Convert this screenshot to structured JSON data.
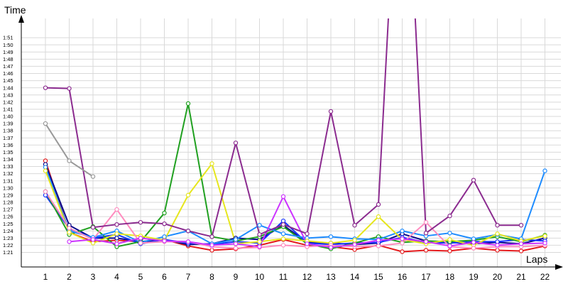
{
  "chart_data": {
    "type": "line",
    "title": "",
    "ylabel": "Time",
    "xlabel": "Laps",
    "x": [
      1,
      2,
      3,
      4,
      5,
      6,
      7,
      8,
      9,
      10,
      11,
      12,
      13,
      14,
      15,
      16,
      17,
      18,
      19,
      20,
      21,
      22
    ],
    "y_ticks": [
      "1:21",
      "1:22",
      "1:23",
      "1:24",
      "1:25",
      "1:26",
      "1:27",
      "1:28",
      "1:29",
      "1:30",
      "1:31",
      "1:32",
      "1:33",
      "1:34",
      "1:35",
      "1:36",
      "1:37",
      "1:38",
      "1:39",
      "1:40",
      "1:41",
      "1:42",
      "1:43",
      "1:44",
      "1:45",
      "1:46",
      "1:47",
      "1:48",
      "1:49",
      "1:50",
      "1:51"
    ],
    "ylim_seconds": [
      80,
      113
    ],
    "grid": true,
    "series": [
      {
        "color": "#e41a1c",
        "values": [
          93.8,
          83.8,
          82.5,
          82.7,
          82.5,
          82.8,
          81.9,
          81.3,
          81.5,
          82.0,
          82.8,
          82.0,
          81.8,
          81.4,
          82.0,
          81.1,
          81.3,
          81.2,
          81.6,
          81.3,
          81.2,
          81.9
        ]
      },
      {
        "color": "#0a0a8c",
        "values": [
          93.3,
          84.8,
          83.0,
          83.0,
          82.5,
          82.8,
          82.1,
          82.2,
          83.0,
          82.8,
          84.8,
          82.4,
          82.3,
          82.1,
          82.3,
          83.6,
          82.6,
          82.4,
          82.2,
          82.4,
          82.2,
          83.0
        ]
      },
      {
        "color": "#1533ff",
        "values": [
          89.0,
          84.3,
          83.0,
          83.5,
          82.2,
          82.8,
          82.3,
          82.1,
          82.5,
          82.3,
          85.4,
          82.3,
          82.1,
          82.3,
          82.4,
          83.1,
          82.4,
          82.3,
          82.5,
          82.5,
          82.8,
          82.6
        ]
      },
      {
        "color": "#20a020",
        "values": [
          89.5,
          83.5,
          84.6,
          81.8,
          82.5,
          86.5,
          101.8,
          83.2,
          82.6,
          83.2,
          84.6,
          82.2,
          81.5,
          82.3,
          83.2,
          82.4,
          82.6,
          82.5,
          82.7,
          83.2,
          82.5,
          83.4
        ]
      },
      {
        "color": "#1e8cff",
        "values": [
          92.9,
          84.0,
          83.1,
          84.0,
          82.4,
          83.2,
          84.0,
          82.2,
          82.8,
          84.8,
          83.6,
          83.0,
          83.2,
          82.9,
          82.8,
          84.0,
          83.3,
          83.7,
          82.9,
          83.5,
          82.9,
          92.4
        ]
      },
      {
        "color": "#e6e61e",
        "values": [
          92.4,
          83.8,
          82.3,
          83.6,
          83.3,
          82.7,
          89.0,
          93.4,
          82.2,
          82.5,
          82.9,
          82.6,
          82.3,
          82.7,
          86.0,
          82.8,
          82.2,
          82.8,
          82.0,
          83.6,
          82.6,
          83.3
        ]
      },
      {
        "color": "#ff8cbf",
        "values": [
          89.5,
          84.4,
          82.8,
          87.0,
          82.3,
          82.5,
          82.5,
          81.8,
          81.6,
          81.7,
          82.0,
          81.8,
          82.0,
          81.8,
          81.9,
          82.3,
          85.2,
          81.8,
          81.6,
          81.8,
          81.8,
          82.0
        ]
      },
      {
        "color": "#cc33ff",
        "values": [
          null,
          82.5,
          82.8,
          82.2,
          83.0,
          82.6,
          82.5,
          82.0,
          82.2,
          81.8,
          88.8,
          82.2,
          81.7,
          82.1,
          82.7,
          82.9,
          82.5,
          81.9,
          82.4,
          82.0,
          82.2,
          82.3
        ]
      },
      {
        "color": "#8b2b8f",
        "values": [
          104.0,
          103.9,
          84.5,
          84.9,
          85.2,
          85.0,
          84.0,
          83.2,
          96.3,
          83.5,
          84.9,
          83.6,
          100.7,
          84.8,
          87.7,
          150.0,
          83.7,
          86.1,
          91.1,
          84.8,
          84.8,
          null
        ]
      },
      {
        "color": "#999999",
        "values": [
          99.0,
          93.8,
          91.6,
          null,
          null,
          null,
          null,
          null,
          null,
          null,
          null,
          null,
          null,
          null,
          null,
          null,
          null,
          null,
          null,
          null,
          null,
          null
        ]
      }
    ]
  }
}
